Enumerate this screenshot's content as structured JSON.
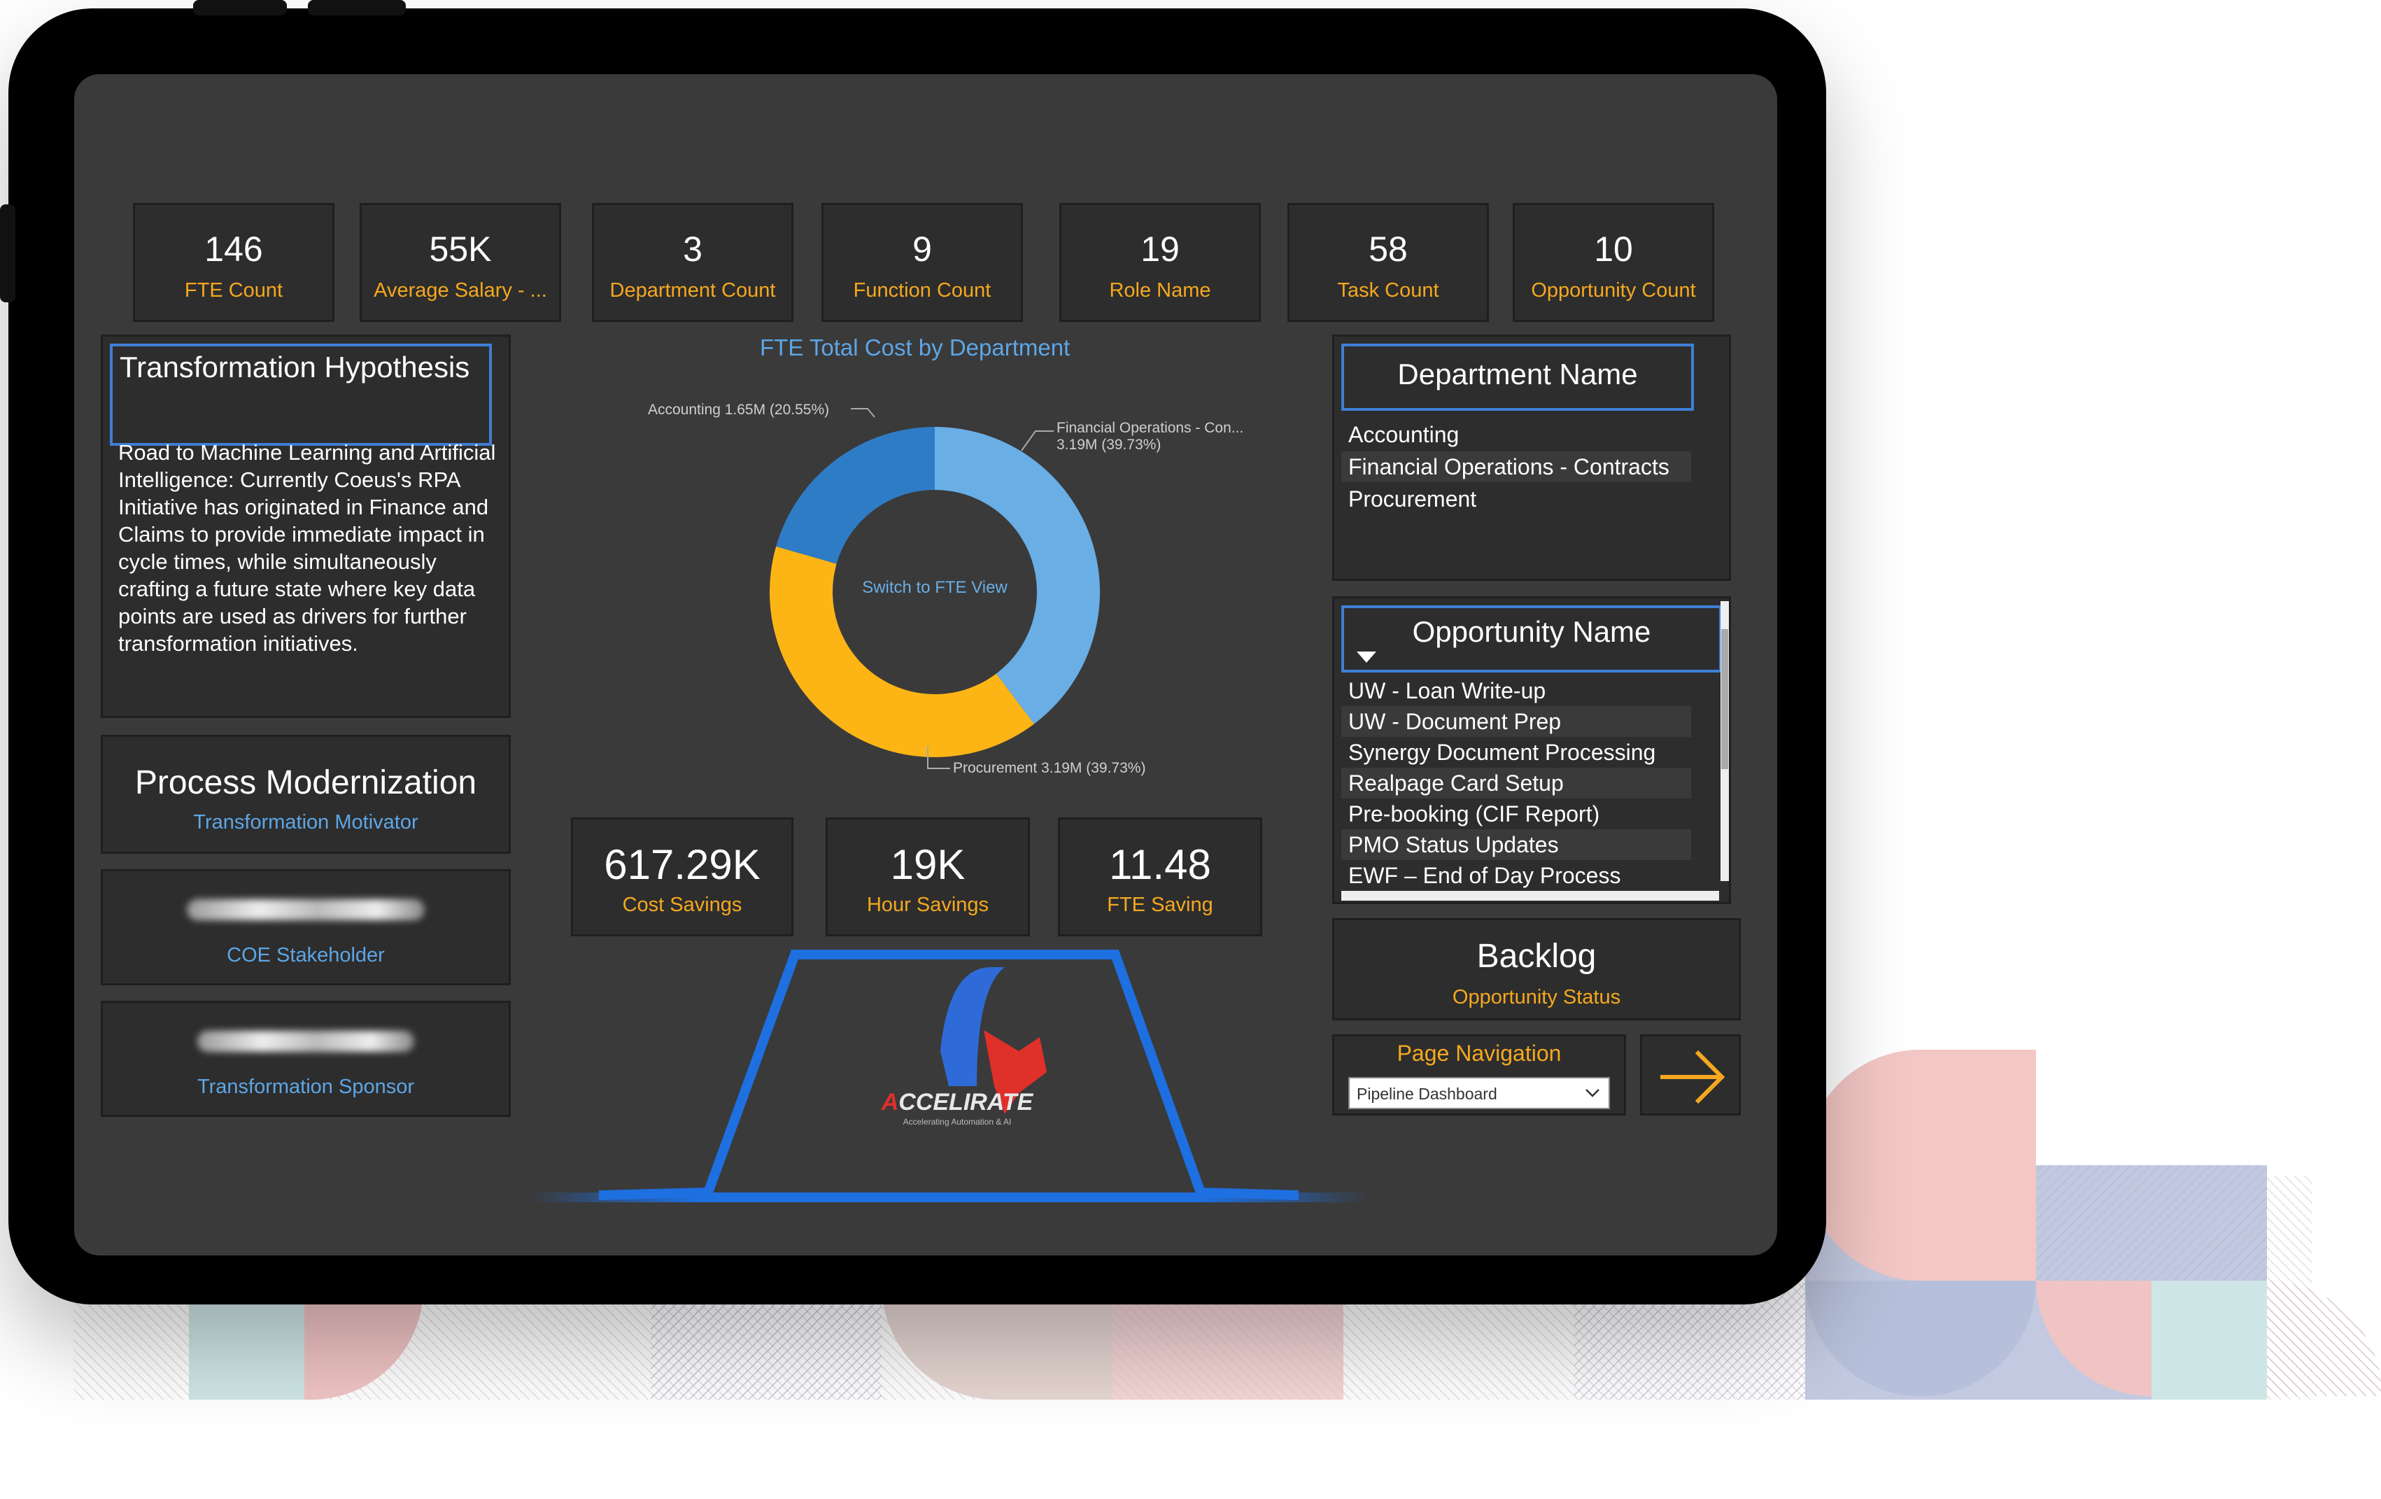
{
  "kpis": [
    {
      "value": "146",
      "label": "FTE Count"
    },
    {
      "value": "55K",
      "label": "Average Salary - ..."
    },
    {
      "value": "3",
      "label": "Department Count"
    },
    {
      "value": "9",
      "label": "Function Count"
    },
    {
      "value": "19",
      "label": "Role Name"
    },
    {
      "value": "58",
      "label": "Task Count"
    },
    {
      "value": "10",
      "label": "Opportunity  Count"
    }
  ],
  "hypothesis": {
    "title": "Transformation Hypothesis",
    "text": "Road to Machine Learning and Artificial Intelligence: Currently Coeus's RPA Initiative has originated in Finance and Claims to provide immediate impact in cycle times, while simultaneously crafting a future state where key data points are used as drivers for further transformation initiatives."
  },
  "motivator": {
    "value": "Process Modernization",
    "label": "Transformation Motivator"
  },
  "stakeholder": {
    "label": "COE Stakeholder"
  },
  "sponsor": {
    "label": "Transformation Sponsor"
  },
  "chart_data": {
    "type": "pie",
    "title": "FTE Total Cost by Department",
    "center_text": "Switch to FTE View",
    "categories": [
      "Financial Operations - Con...",
      "Procurement",
      "Accounting"
    ],
    "values": [
      3.19,
      3.19,
      1.65
    ],
    "value_labels": [
      "3.19M (39.73%)",
      "Procurement 3.19M (39.73%)",
      "Accounting 1.65M (20.55%)"
    ],
    "colors": [
      "#6aaee6",
      "#fdb515",
      "#2f7cc6"
    ]
  },
  "savings": [
    {
      "value": "617.29K",
      "label": "Cost Savings"
    },
    {
      "value": "19K",
      "label": "Hour Savings"
    },
    {
      "value": "11.48",
      "label": "FTE Saving"
    }
  ],
  "logo": {
    "text": "CCELIRATE",
    "tagline": "Accelerating Automation & AI"
  },
  "department": {
    "title": "Department Name",
    "items": [
      "Accounting",
      "Financial Operations - Contracts",
      "Procurement"
    ]
  },
  "opportunity": {
    "title": "Opportunity Name",
    "items": [
      "UW - Loan Write-up",
      "UW - Document Prep",
      "Synergy Document Processing",
      "Realpage Card Setup",
      "Pre-booking (CIF Report)",
      "PMO Status Updates",
      "EWF – End of Day Process"
    ]
  },
  "status": {
    "value": "Backlog",
    "label": "Opportunity Status"
  },
  "navigation": {
    "label": "Page Navigation",
    "selected": "Pipeline Dashboard"
  }
}
